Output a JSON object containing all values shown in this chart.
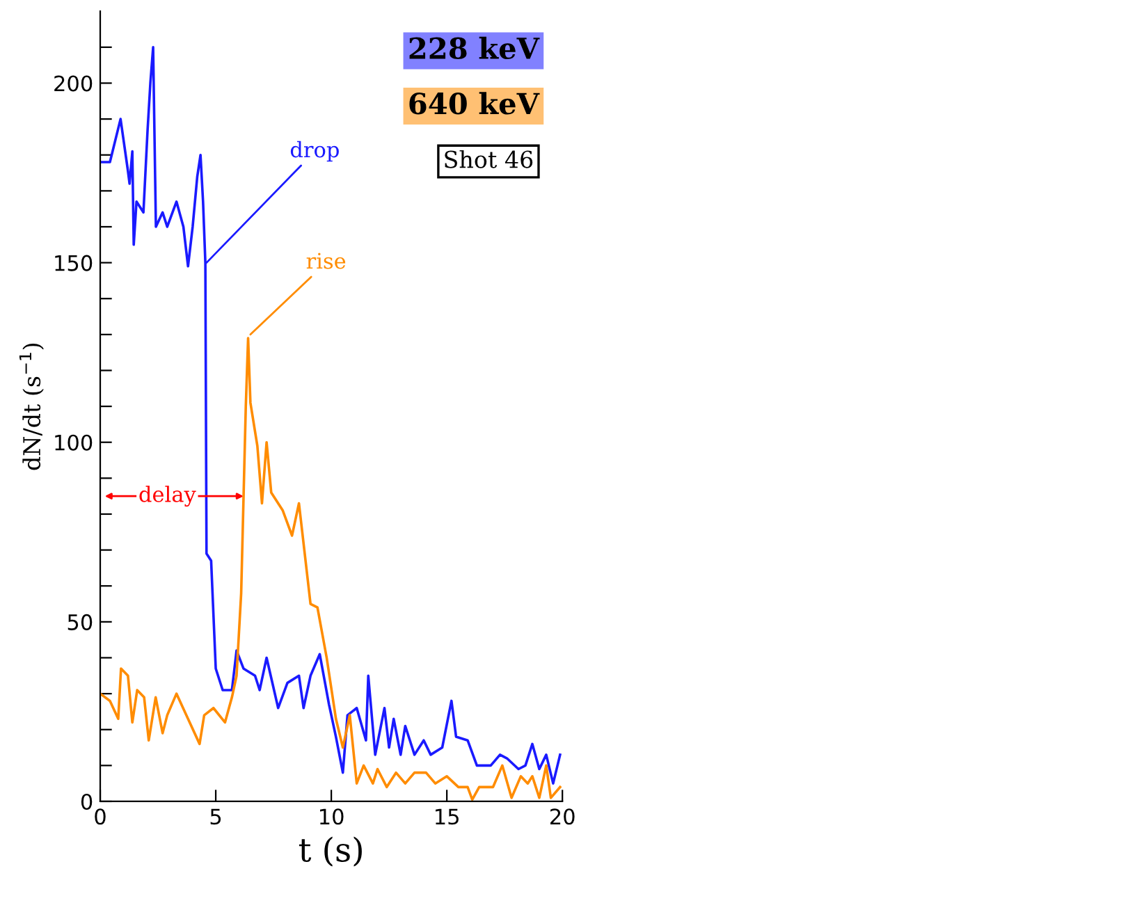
{
  "chart_data": {
    "type": "line",
    "xlabel": "t (s)",
    "ylabel": "dN/dt (s$^{−1}$)",
    "xlim": [
      0,
      20
    ],
    "xticks": [
      0,
      5,
      10,
      15,
      20
    ],
    "ylim": [
      0,
      220
    ],
    "yticks": [
      0,
      {
        "value": 10,
        "label": null
      },
      {
        "value": 20,
        "label": null
      },
      {
        "value": 30,
        "label": null
      },
      {
        "value": 40,
        "label": null
      },
      50,
      {
        "value": 60,
        "label": null
      },
      {
        "value": 70,
        "label": null
      },
      {
        "value": 80,
        "label": null
      },
      {
        "value": 90,
        "label": null
      },
      100,
      {
        "value": 110,
        "label": null
      },
      {
        "value": 120,
        "label": null
      },
      {
        "value": 130,
        "label": null
      },
      {
        "value": 140,
        "label": null
      },
      150,
      {
        "value": 160,
        "label": null
      },
      {
        "value": 170,
        "label": null
      },
      {
        "value": 180,
        "label": null
      },
      {
        "value": 190,
        "label": null
      },
      200,
      {
        "value": 210,
        "label": null
      }
    ],
    "grid": false,
    "legend": "top right",
    "marker": "none",
    "line_style": "solid",
    "series": [
      {
        "name": "228 keV",
        "color": "#1a1aff",
        "x": [
          0.0,
          0.42,
          0.88,
          1.19,
          1.27,
          1.39,
          1.45,
          1.57,
          1.87,
          2.05,
          2.17,
          2.29,
          2.41,
          2.7,
          2.9,
          3.3,
          3.6,
          3.8,
          4.0,
          4.2,
          4.34,
          4.45,
          4.55,
          4.6,
          4.8,
          5.0,
          5.3,
          5.7,
          5.9,
          6.2,
          6.7,
          6.9,
          7.2,
          7.7,
          8.1,
          8.6,
          8.8,
          9.1,
          9.5,
          9.9,
          10.2,
          10.5,
          10.7,
          11.1,
          11.5,
          11.6,
          11.9,
          12.3,
          12.5,
          12.7,
          13.0,
          13.2,
          13.6,
          14.0,
          14.3,
          14.8,
          15.2,
          15.4,
          15.9,
          16.3,
          16.9,
          17.3,
          17.6,
          18.1,
          18.4,
          18.7,
          19.0,
          19.3,
          19.6,
          19.9
        ],
        "values": [
          178,
          178,
          190,
          176,
          172,
          181,
          155,
          167,
          164,
          187,
          200,
          210,
          160,
          164,
          160,
          167,
          160,
          149,
          160,
          174,
          180,
          167,
          150,
          69,
          67,
          37,
          31,
          31,
          42,
          37,
          35,
          31,
          40,
          26,
          33,
          35,
          26,
          35,
          41,
          27,
          18,
          8,
          24,
          26,
          17,
          35,
          13,
          26,
          15,
          23,
          13,
          21,
          13,
          17,
          13,
          15,
          28,
          18,
          17,
          10,
          10,
          13,
          12,
          9,
          10,
          16,
          9,
          13,
          5,
          13
        ]
      },
      {
        "name": "640 keV",
        "color": "#ff8c00",
        "x": [
          0.0,
          0.42,
          0.78,
          0.9,
          1.2,
          1.39,
          1.6,
          1.9,
          2.1,
          2.4,
          2.7,
          2.9,
          3.3,
          3.8,
          4.3,
          4.5,
          4.9,
          5.4,
          5.7,
          5.9,
          6.1,
          6.2,
          6.3,
          6.4,
          6.5,
          6.8,
          7.0,
          7.2,
          7.4,
          7.9,
          8.3,
          8.6,
          9.1,
          9.4,
          9.8,
          10.2,
          10.5,
          10.8,
          11.1,
          11.4,
          11.8,
          12.0,
          12.4,
          12.8,
          13.2,
          13.6,
          14.1,
          14.5,
          15.0,
          15.5,
          15.9,
          16.1,
          16.4,
          17.0,
          17.4,
          17.8,
          18.2,
          18.5,
          18.7,
          19.0,
          19.3,
          19.5,
          19.9
        ],
        "values": [
          30,
          28,
          23,
          37,
          35,
          22,
          31,
          29,
          17,
          29,
          19,
          24,
          30,
          23,
          16,
          24,
          26,
          22,
          29,
          35,
          58,
          84,
          110,
          129,
          111,
          99,
          83,
          100,
          86,
          81,
          74,
          83,
          55,
          54,
          40,
          23,
          15,
          24,
          5,
          10,
          5,
          9,
          4,
          8,
          5,
          8,
          8,
          5,
          7,
          4,
          4,
          0.5,
          4,
          4,
          10,
          1,
          7,
          5,
          7,
          1,
          10,
          1,
          4
        ]
      }
    ],
    "annotations": [
      {
        "text": "drop",
        "x": 4.6,
        "y": 150
      },
      {
        "text": "rise",
        "x": 6.5,
        "y": 130
      },
      {
        "text": "delay",
        "x": 6.2,
        "y": 85
      },
      "Shot 46"
    ]
  }
}
